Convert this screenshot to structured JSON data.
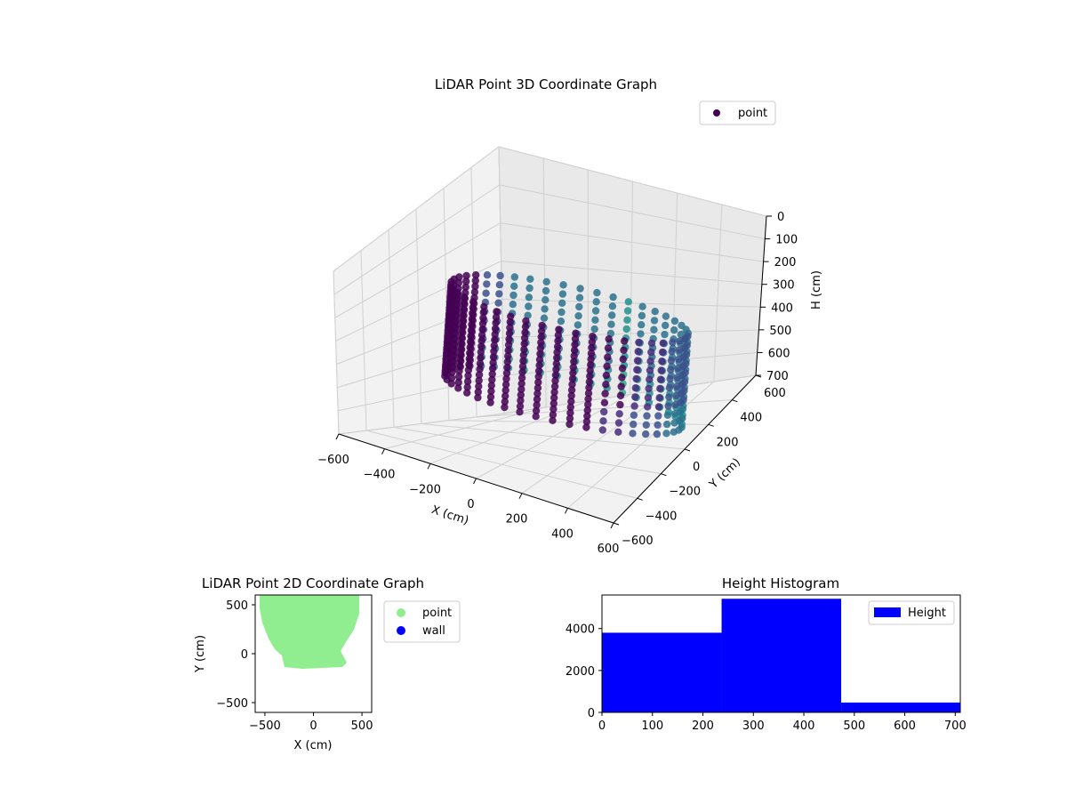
{
  "chart_data": [
    {
      "type": "scatter",
      "title": "LiDAR Point 3D Coordinate Graph",
      "xlabel": "X (cm)",
      "ylabel": "Y (cm)",
      "zlabel": "H (cm)",
      "xlim": [
        -600,
        600
      ],
      "ylim": [
        -600,
        600
      ],
      "zlim": [
        700,
        0
      ],
      "x_ticks": [
        "−600",
        "−400",
        "−200",
        "0",
        "200",
        "400",
        "600"
      ],
      "y_ticks": [
        "−600",
        "−400",
        "−200",
        "0",
        "200",
        "400",
        "600"
      ],
      "z_ticks": [
        "0",
        "100",
        "200",
        "300",
        "400",
        "500",
        "600",
        "700"
      ],
      "legend": [
        "point"
      ],
      "legend_position": "top-right",
      "colormap": "viridis",
      "grid": true,
      "series": [
        {
          "name": "point",
          "color": "#440154",
          "description_values": {
            "radius": 450,
            "h_min": 0,
            "h_max": 420
          }
        }
      ]
    },
    {
      "type": "scatter",
      "title": "LiDAR Point 2D Coordinate Graph",
      "xlabel": "X (cm)",
      "ylabel": "Y (cm)",
      "xlim": [
        -600,
        600
      ],
      "ylim": [
        -600,
        600
      ],
      "x_ticks": [
        "−500",
        "0",
        "500"
      ],
      "y_ticks": [
        "−500",
        "0",
        "500"
      ],
      "legend": [
        "point",
        "wall"
      ],
      "legend_position": "outside-right",
      "series": [
        {
          "name": "point",
          "color": "#90ee90"
        },
        {
          "name": "wall",
          "color": "#0000ff"
        }
      ]
    },
    {
      "type": "bar",
      "title": "Height Histogram",
      "xlim": [
        0,
        710
      ],
      "ylim": [
        0,
        5600
      ],
      "x_ticks": [
        "0",
        "100",
        "200",
        "300",
        "400",
        "500",
        "600",
        "700"
      ],
      "y_ticks": [
        "0",
        "2000",
        "4000"
      ],
      "legend": [
        "Height"
      ],
      "legend_position": "top-right",
      "bins": [
        {
          "start": 0,
          "end": 237,
          "count": 3800
        },
        {
          "start": 237,
          "end": 474,
          "count": 5420
        },
        {
          "start": 474,
          "end": 710,
          "count": 470
        }
      ],
      "series": [
        {
          "name": "Height",
          "color": "#0000ff"
        }
      ]
    }
  ]
}
